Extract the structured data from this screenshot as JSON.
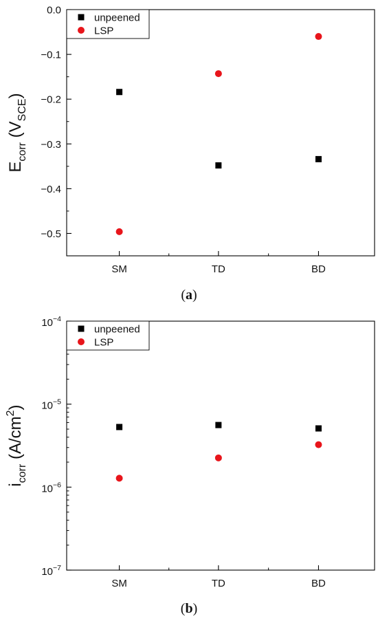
{
  "chart_data": [
    {
      "type": "scatter",
      "categories": [
        "SM",
        "TD",
        "BD"
      ],
      "ylabel": {
        "main": "E",
        "sub": "corr",
        "paren_open": " (V",
        "unit_sub": "SCE",
        "paren_close": ")"
      },
      "ylim": [
        -0.55,
        0.0
      ],
      "yscale": "linear",
      "yticks": [
        0.0,
        -0.1,
        -0.2,
        -0.3,
        -0.4,
        -0.5
      ],
      "ytick_labels": [
        "0.0",
        "−0.1",
        "−0.2",
        "−0.3",
        "−0.4",
        "−0.5"
      ],
      "legend_position": "top-left",
      "grid": false,
      "series": [
        {
          "name": "unpeened",
          "marker": "square",
          "color": "#000000",
          "values": [
            -0.184,
            -0.348,
            -0.334
          ]
        },
        {
          "name": "LSP",
          "marker": "circle",
          "color": "#e8151b",
          "values": [
            -0.496,
            -0.143,
            -0.06
          ]
        }
      ],
      "caption": {
        "open": "(",
        "letter": "a",
        "close": ")"
      }
    },
    {
      "type": "scatter",
      "categories": [
        "SM",
        "TD",
        "BD"
      ],
      "ylabel": {
        "main": "i",
        "sub": "corr",
        "paren_open": " (A/cm",
        "sup": "2",
        "paren_close": ")"
      },
      "ylim": [
        1e-07,
        0.0001
      ],
      "yscale": "log",
      "yticks": [
        0.0001,
        1e-05,
        1e-06,
        1e-07
      ],
      "ytick_labels": [
        {
          "base": "10",
          "exp": "−4"
        },
        {
          "base": "10",
          "exp": "−5"
        },
        {
          "base": "10",
          "exp": "−6"
        },
        {
          "base": "10",
          "exp": "−7"
        }
      ],
      "legend_position": "top-left",
      "grid": false,
      "series": [
        {
          "name": "unpeened",
          "marker": "square",
          "color": "#000000",
          "values": [
            5.3e-06,
            5.6e-06,
            5.1e-06
          ]
        },
        {
          "name": "LSP",
          "marker": "circle",
          "color": "#e8151b",
          "values": [
            1.28e-06,
            2.25e-06,
            3.25e-06
          ]
        }
      ],
      "caption": {
        "open": "(",
        "letter": "b",
        "close": ")"
      }
    }
  ]
}
